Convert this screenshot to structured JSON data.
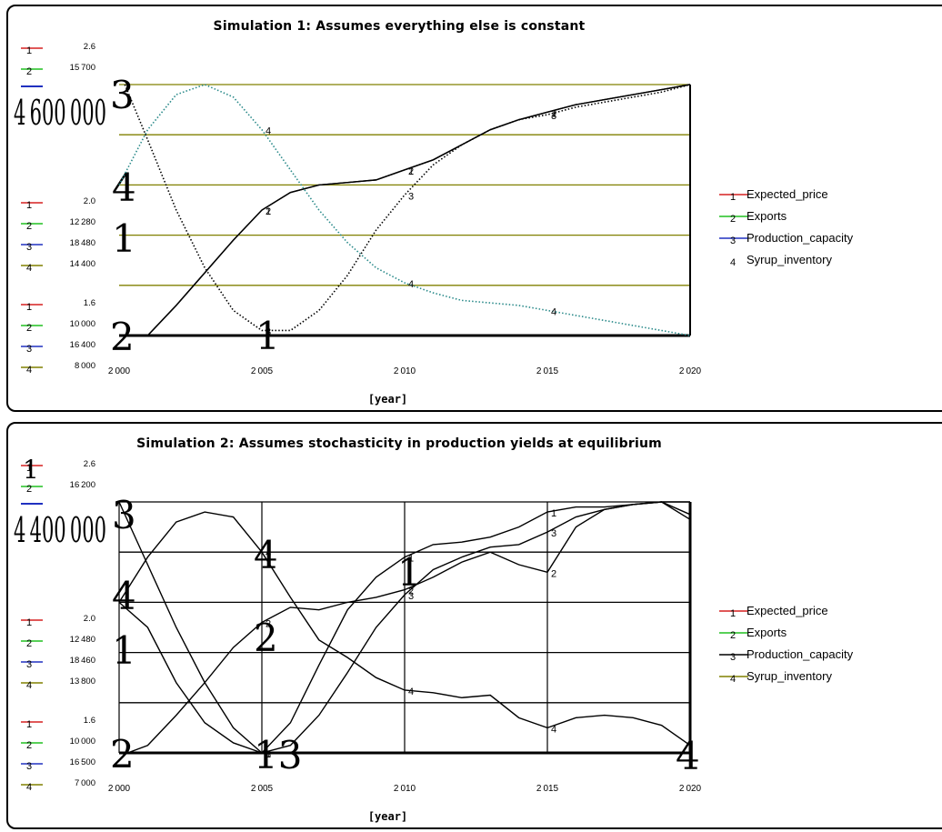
{
  "colors": {
    "price": "#d62020",
    "exports": "#20c020",
    "capacity": "#2030c0",
    "inventory": "#808000",
    "grid": "#808000",
    "dotted": "#2a8a8a"
  },
  "chart_data": [
    {
      "type": "line",
      "title": "Simulation 1: Assumes everything else is constant",
      "xlabel": "[year]",
      "x_range": [
        2000,
        2020
      ],
      "x_ticks": [
        "2 000",
        "2 005",
        "2 010",
        "2 015",
        "2 020"
      ],
      "axes": [
        {
          "series_number": "1",
          "ticks": [
            "2.6",
            "2.0",
            "1.6"
          ],
          "range": [
            1.6,
            2.6
          ]
        },
        {
          "series_number": "2",
          "ticks": [
            "15 700",
            "12 280",
            "10 000"
          ],
          "range": [
            10000,
            15700
          ]
        },
        {
          "series_number": "3",
          "ticks": [
            "18 480",
            "16 400"
          ],
          "range": [
            16400,
            20560
          ]
        },
        {
          "series_number": "4",
          "ticks": [
            "4 600 000",
            "14 400",
            "8 000"
          ],
          "range": [
            8000,
            4600000
          ]
        }
      ],
      "legend": [
        {
          "number": "1",
          "name": "Expected_price"
        },
        {
          "number": "2",
          "name": "Exports"
        },
        {
          "number": "3",
          "name": "Production_capacity"
        },
        {
          "number": "4",
          "name": "Syrup_inventory"
        }
      ],
      "grid": true,
      "legend_position": "right",
      "series": [
        {
          "number": "1",
          "style": "solid",
          "x": [
            2000.2,
            2001,
            2002,
            2003,
            2004,
            2005,
            2006,
            2007,
            2008,
            2009,
            2010,
            2011,
            2012,
            2013,
            2014,
            2015,
            2016,
            2017,
            2018,
            2019,
            2020
          ],
          "y": [
            0,
            0,
            0.12,
            0.25,
            0.38,
            0.5,
            0.57,
            0.6,
            0.61,
            0.62,
            0.66,
            0.7,
            0.76,
            0.82,
            0.86,
            0.89,
            0.92,
            0.94,
            0.96,
            0.98,
            1.0
          ]
        },
        {
          "number": "2",
          "style": "solid",
          "x": [
            2000.2,
            2001,
            2002,
            2003,
            2004,
            2005,
            2006,
            2007,
            2008,
            2009,
            2010,
            2011,
            2012,
            2013,
            2014,
            2015,
            2016,
            2017,
            2018,
            2019,
            2020
          ],
          "y": [
            0,
            0,
            0.12,
            0.25,
            0.38,
            0.5,
            0.57,
            0.6,
            0.61,
            0.62,
            0.66,
            0.7,
            0.76,
            0.82,
            0.86,
            0.89,
            0.92,
            0.94,
            0.96,
            0.98,
            1.0
          ]
        },
        {
          "number": "3",
          "style": "dotted",
          "x": [
            2000.2,
            2001,
            2002,
            2003,
            2004,
            2005,
            2006,
            2007,
            2008,
            2009,
            2010,
            2011,
            2012,
            2013,
            2014,
            2015,
            2016,
            2017,
            2018,
            2019,
            2020
          ],
          "y": [
            1.0,
            0.78,
            0.5,
            0.27,
            0.1,
            0.02,
            0.02,
            0.1,
            0.24,
            0.42,
            0.56,
            0.68,
            0.76,
            0.82,
            0.86,
            0.88,
            0.91,
            0.93,
            0.95,
            0.97,
            1.0
          ]
        },
        {
          "number": "4",
          "style": "dotted",
          "x": [
            2000,
            2001,
            2002,
            2003,
            2004,
            2005,
            2006,
            2007,
            2008,
            2009,
            2010,
            2011,
            2012,
            2013,
            2014,
            2015,
            2016,
            2017,
            2018,
            2019,
            2020
          ],
          "y": [
            0.6,
            0.82,
            0.96,
            1.0,
            0.95,
            0.82,
            0.66,
            0.5,
            0.37,
            0.27,
            0.21,
            0.17,
            0.14,
            0.13,
            0.12,
            0.1,
            0.08,
            0.06,
            0.04,
            0.02,
            0.0
          ]
        }
      ]
    },
    {
      "type": "line",
      "title": "Simulation 2: Assumes stochasticity in production yields at equilibrium",
      "xlabel": "[year]",
      "x_range": [
        2000,
        2020
      ],
      "x_ticks": [
        "2 000",
        "2 005",
        "2 010",
        "2 015",
        "2 020"
      ],
      "axes": [
        {
          "series_number": "1",
          "ticks": [
            "2.6",
            "2.0",
            "1.6"
          ],
          "range": [
            1.6,
            2.6
          ]
        },
        {
          "series_number": "2",
          "ticks": [
            "16 200",
            "12 480",
            "10 000"
          ],
          "range": [
            10000,
            16200
          ]
        },
        {
          "series_number": "3",
          "ticks": [
            "18 460",
            "16 500"
          ],
          "range": [
            16500,
            20420
          ]
        },
        {
          "series_number": "4",
          "ticks": [
            "4 400 000",
            "13 800",
            "7 000"
          ],
          "range": [
            7000,
            4400000
          ]
        }
      ],
      "legend": [
        {
          "number": "1",
          "name": "Expected_price"
        },
        {
          "number": "2",
          "name": "Exports"
        },
        {
          "number": "3",
          "name": "Production_capacity"
        },
        {
          "number": "4",
          "name": "Syrup_inventory"
        }
      ],
      "grid": true,
      "legend_position": "right",
      "series": [
        {
          "number": "1",
          "style": "solid",
          "x": [
            2000,
            2001,
            2002,
            2003,
            2004,
            2005,
            2006,
            2007,
            2008,
            2009,
            2010,
            2011,
            2012,
            2013,
            2014,
            2015,
            2016,
            2017,
            2018,
            2019,
            2020
          ],
          "y": [
            0.6,
            0.5,
            0.28,
            0.12,
            0.04,
            0.0,
            0.12,
            0.35,
            0.57,
            0.7,
            0.78,
            0.83,
            0.84,
            0.86,
            0.9,
            0.96,
            0.98,
            0.98,
            0.99,
            1.0,
            0.95
          ]
        },
        {
          "number": "2",
          "style": "solid",
          "x": [
            2000.3,
            2001,
            2002,
            2003,
            2004,
            2005,
            2006,
            2007,
            2008,
            2009,
            2010,
            2011,
            2012,
            2013,
            2014,
            2015,
            2016,
            2017,
            2018,
            2019,
            2020
          ],
          "y": [
            0,
            0.03,
            0.15,
            0.28,
            0.42,
            0.52,
            0.58,
            0.57,
            0.6,
            0.62,
            0.65,
            0.7,
            0.76,
            0.8,
            0.75,
            0.72,
            0.9,
            0.97,
            0.99,
            1.0,
            0.93
          ]
        },
        {
          "number": "3",
          "style": "solid",
          "x": [
            2000,
            2001,
            2002,
            2003,
            2004,
            2005,
            2006,
            2007,
            2008,
            2009,
            2010,
            2011,
            2012,
            2013,
            2014,
            2015,
            2016,
            2017,
            2018,
            2019,
            2020
          ],
          "y": [
            1.0,
            0.75,
            0.5,
            0.28,
            0.1,
            0.0,
            0.03,
            0.15,
            0.32,
            0.5,
            0.63,
            0.73,
            0.78,
            0.82,
            0.83,
            0.88,
            0.94,
            0.97,
            0.99,
            1.0,
            1.0
          ]
        },
        {
          "number": "4",
          "style": "solid",
          "x": [
            2000,
            2001,
            2002,
            2003,
            2004,
            2005,
            2006,
            2007,
            2008,
            2009,
            2010,
            2011,
            2012,
            2013,
            2014,
            2015,
            2016,
            2017,
            2018,
            2019,
            2020
          ],
          "y": [
            0.6,
            0.78,
            0.92,
            0.96,
            0.94,
            0.8,
            0.62,
            0.45,
            0.38,
            0.3,
            0.25,
            0.24,
            0.22,
            0.23,
            0.14,
            0.1,
            0.14,
            0.15,
            0.14,
            0.11,
            0.03
          ]
        }
      ]
    }
  ]
}
